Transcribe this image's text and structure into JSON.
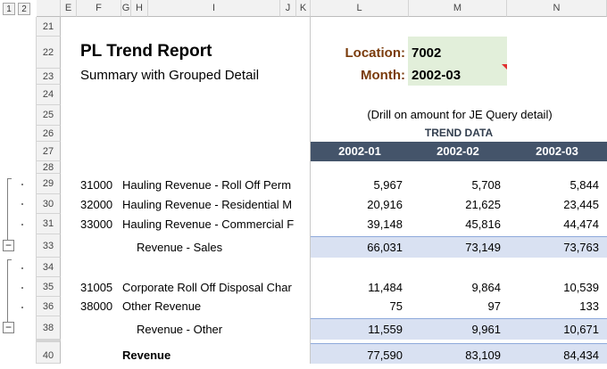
{
  "outline": {
    "levels": [
      "1",
      "2"
    ],
    "collapse_symbol": "−"
  },
  "columns": [
    "E",
    "F",
    "G",
    "H",
    "I",
    "J",
    "K",
    "L",
    "M",
    "N"
  ],
  "rows": [
    "21",
    "22",
    "23",
    "24",
    "25",
    "26",
    "27",
    "28",
    "29",
    "30",
    "31",
    "33",
    "34",
    "35",
    "36",
    "38",
    "40"
  ],
  "report": {
    "title": "PL Trend Report",
    "subtitle": "Summary with Grouped Detail",
    "location_label": "Location:",
    "location_value": "7002",
    "month_label": "Month:",
    "month_value": "2002-03",
    "drill_note": "(Drill on amount for JE Query detail)",
    "trend_header": "TREND DATA",
    "periods": [
      "2002-01",
      "2002-02",
      "2002-03"
    ]
  },
  "lines": [
    {
      "acct": "31000",
      "desc": "Hauling Revenue - Roll Off Perm",
      "v": [
        "5,967",
        "5,708",
        "5,844"
      ]
    },
    {
      "acct": "32000",
      "desc": "Hauling Revenue - Residential M",
      "v": [
        "20,916",
        "21,625",
        "23,445"
      ]
    },
    {
      "acct": "33000",
      "desc": "Hauling Revenue - Commercial F",
      "v": [
        "39,148",
        "45,816",
        "44,474"
      ]
    },
    {
      "label": "Revenue - Sales",
      "v": [
        "66,031",
        "73,149",
        "73,763"
      ]
    },
    {
      "acct": "31005",
      "desc": "Corporate Roll Off Disposal Char",
      "v": [
        "11,484",
        "9,864",
        "10,539"
      ]
    },
    {
      "acct": "38000",
      "desc": "Other Revenue",
      "v": [
        "75",
        "97",
        "133"
      ]
    },
    {
      "label": "Revenue - Other",
      "v": [
        "11,559",
        "9,961",
        "10,671"
      ]
    },
    {
      "label": "Revenue",
      "v": [
        "77,590",
        "83,109",
        "84,434"
      ]
    }
  ],
  "colors": {
    "header_band": "#44546a",
    "subtotal_band": "#d9e1f2",
    "input_box": "#e2efda",
    "label": "#7a3b0b"
  }
}
